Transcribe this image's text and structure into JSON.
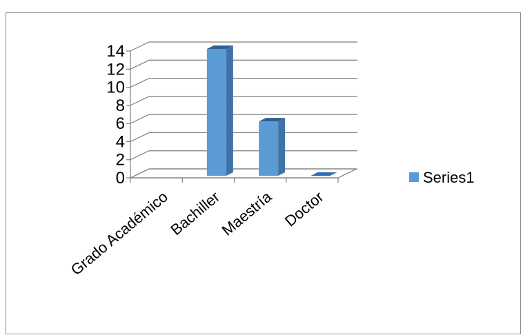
{
  "chart_data": {
    "type": "bar",
    "categories": [
      "Grado Académico",
      "Bachiller",
      "Maestría",
      "Doctor"
    ],
    "series": [
      {
        "name": "Series1",
        "values": [
          0,
          14,
          6,
          0
        ],
        "color": "#5b9bd5"
      }
    ],
    "y_ticks": [
      "0",
      "2",
      "4",
      "6",
      "8",
      "10",
      "12",
      "14"
    ],
    "ylim": [
      0,
      14
    ],
    "style": "3d-column",
    "grid": true,
    "legend": {
      "position": "right",
      "entries": [
        "Series1"
      ]
    },
    "title": "",
    "xlabel": "",
    "ylabel": ""
  }
}
